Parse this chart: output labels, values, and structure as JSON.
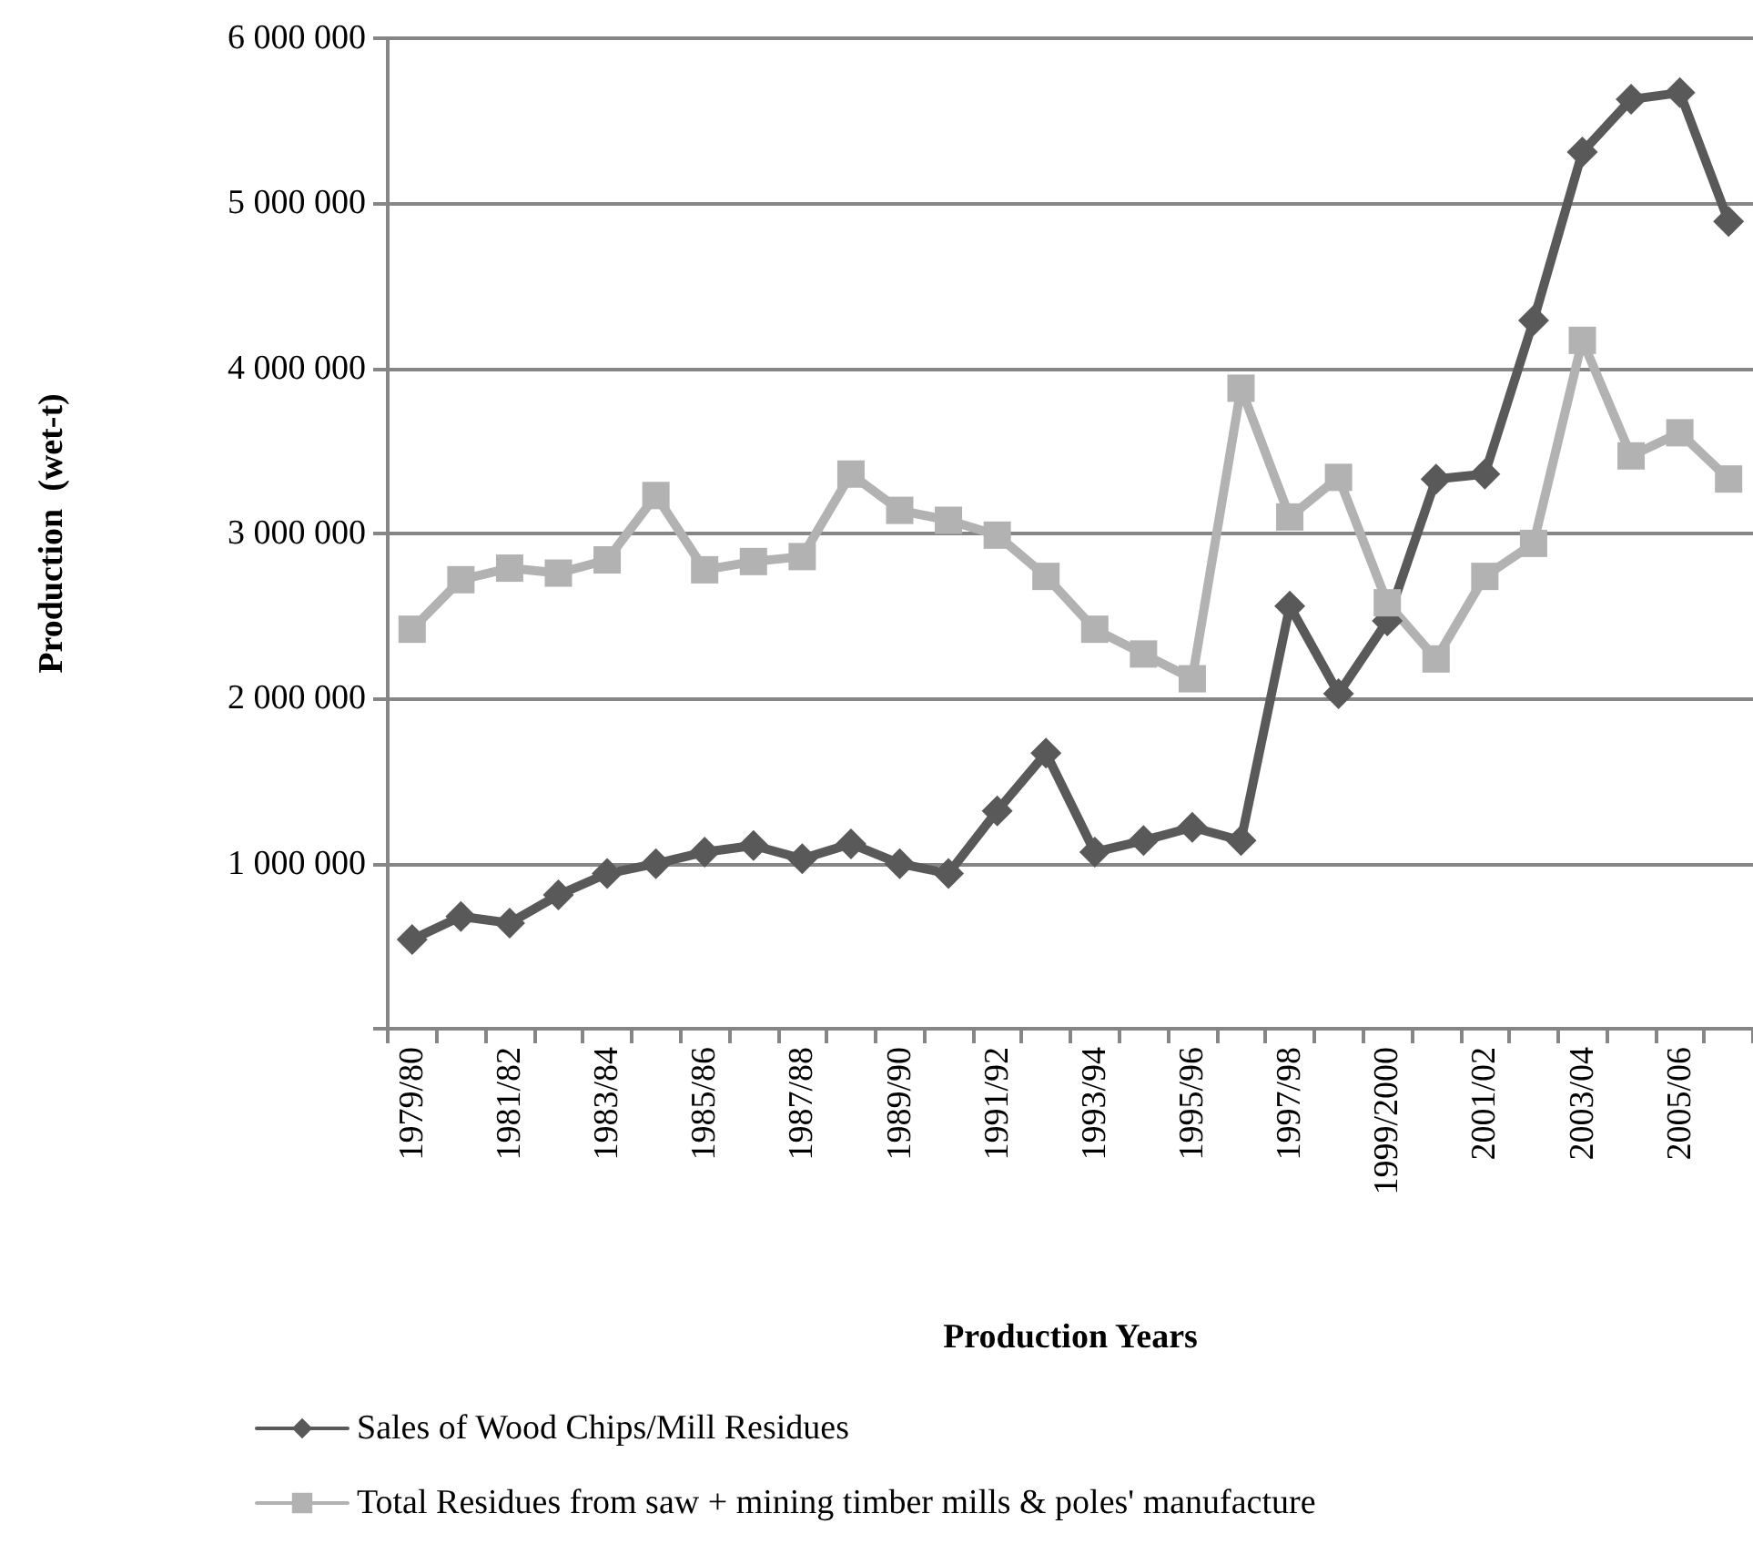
{
  "chart_data": {
    "type": "line",
    "xlabel": "Production Years",
    "ylabel": "Production  (wet-t)",
    "categories": [
      "1979/80",
      null,
      "1981/82",
      null,
      "1983/84",
      null,
      "1985/86",
      null,
      "1987/88",
      null,
      "1989/90",
      null,
      "1991/92",
      null,
      "1993/94",
      null,
      "1995/96",
      null,
      "1997/98",
      null,
      "1999/2000",
      null,
      "2001/02",
      null,
      "2003/04",
      null,
      "2005/06",
      null
    ],
    "series": [
      {
        "name": "Sales of Wood Chips/Mill Residues",
        "color": "#595959",
        "marker": "diamond",
        "values": [
          540000,
          680000,
          640000,
          810000,
          940000,
          1000000,
          1070000,
          1110000,
          1030000,
          1120000,
          1000000,
          940000,
          1320000,
          1670000,
          1070000,
          1140000,
          1220000,
          1140000,
          2560000,
          2030000,
          2470000,
          3330000,
          3360000,
          4290000,
          5310000,
          5630000,
          5670000,
          4890000
        ]
      },
      {
        "name": "Total Residues from saw + mining timber mills & poles' manufacture",
        "color": "#b2b2b2",
        "marker": "square",
        "values": [
          2420000,
          2720000,
          2790000,
          2760000,
          2840000,
          3230000,
          2780000,
          2830000,
          2860000,
          3360000,
          3140000,
          3080000,
          2990000,
          2740000,
          2420000,
          2270000,
          2120000,
          3880000,
          3100000,
          3340000,
          2580000,
          2240000,
          2740000,
          2940000,
          4170000,
          3470000,
          3610000,
          3330000
        ]
      }
    ],
    "ylim": [
      0,
      6000000
    ],
    "yticks": [
      {
        "value": 0,
        "label": null
      },
      {
        "value": 1000000,
        "label": "1 000 000"
      },
      {
        "value": 2000000,
        "label": "2 000 000"
      },
      {
        "value": 3000000,
        "label": "3 000 000"
      },
      {
        "value": 4000000,
        "label": "4 000 000"
      },
      {
        "value": 5000000,
        "label": "5 000 000"
      },
      {
        "value": 6000000,
        "label": "6 000 000"
      }
    ],
    "grid": "y",
    "legend": "bottom",
    "line_style": "solid"
  }
}
